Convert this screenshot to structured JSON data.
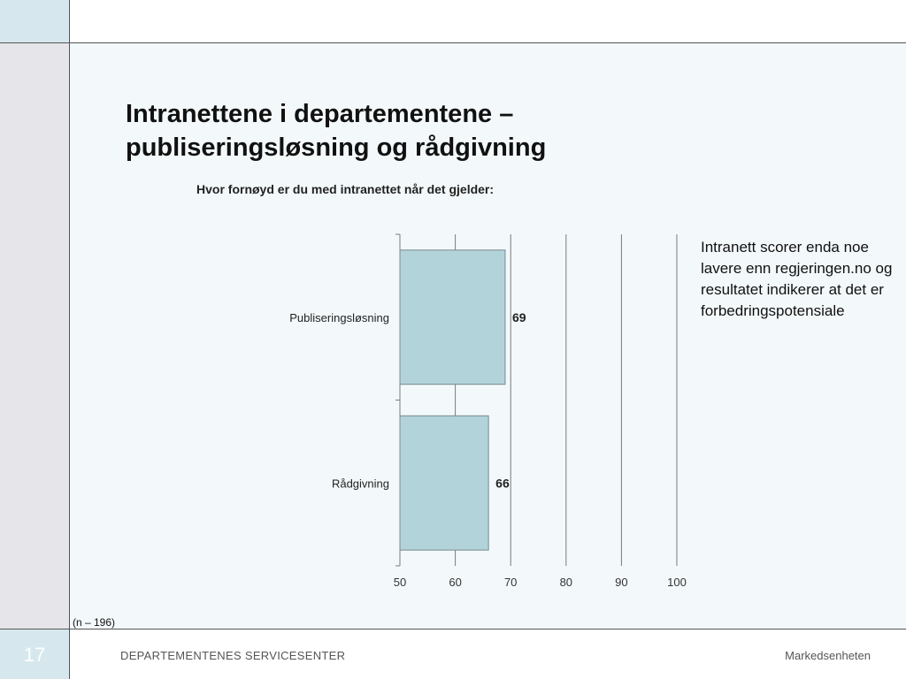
{
  "slide": {
    "title": "Intranettene i departementene – publiseringsløsning og rådgivning",
    "annotation": "Intranett scorer enda noe lavere enn regjeringen.no og resultatet indikerer at det er forbedringspotensiale",
    "footnote": "(n – 196)",
    "page_number": "17",
    "footer_org": "DEPARTEMENTENES SERVICESENTER",
    "footer_unit": "Markedsenheten"
  },
  "colors": {
    "bar_fill": "#b2d3d9",
    "accent_block": "#d6e8ee",
    "sidebar": "#e5e5ea"
  },
  "chart_data": {
    "type": "bar",
    "orientation": "horizontal",
    "title": "Hvor fornøyd er du med intranettet når det gjelder:",
    "categories": [
      "Publiseringsløsning",
      "Rådgivning"
    ],
    "values": [
      69,
      66
    ],
    "value_labels": [
      "69",
      "66"
    ],
    "xlim": [
      50,
      100
    ],
    "xticks": [
      "50",
      "60",
      "70",
      "80",
      "90",
      "100"
    ],
    "grid": true,
    "legend": "none"
  }
}
